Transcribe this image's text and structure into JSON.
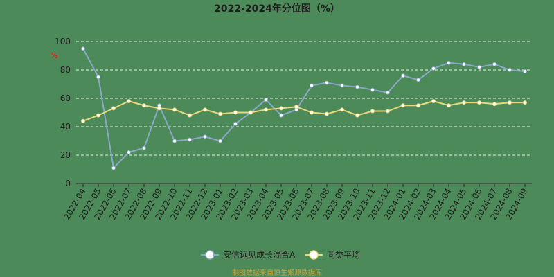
{
  "chart_data": {
    "type": "line",
    "title": "2022-2024年分位图（%）",
    "ylabel_mark": "%",
    "ylim": [
      0,
      100
    ],
    "yticks": [
      0,
      20,
      40,
      60,
      80,
      100
    ],
    "grid": true,
    "legend_position": "bottom-center",
    "categories": [
      "2022-04",
      "2022-05",
      "2022-06",
      "2022-07",
      "2022-08",
      "2022-09",
      "2022-10",
      "2022-11",
      "2022-12",
      "2023-01",
      "2023-02",
      "2023-03",
      "2023-04",
      "2023-05",
      "2023-06",
      "2023-07",
      "2023-08",
      "2023-09",
      "2023-10",
      "2023-11",
      "2023-12",
      "2024-01",
      "2024-02",
      "2024-03",
      "2024-04",
      "2024-05",
      "2024-06",
      "2024-07",
      "2024-08",
      "2024-09"
    ],
    "series": [
      {
        "name": "安信远见成长混合A",
        "color": "#8aa8c8",
        "values": [
          95,
          75,
          11,
          22,
          25,
          55,
          30,
          31,
          33,
          30,
          42,
          50,
          59,
          48,
          52,
          69,
          71,
          69,
          68,
          66,
          64,
          76,
          73,
          81,
          85,
          84,
          82,
          84,
          80,
          79
        ]
      },
      {
        "name": "同类平均",
        "color": "#e8d97a",
        "values": [
          44,
          48,
          53,
          58,
          55,
          53,
          52,
          48,
          52,
          49,
          50,
          50,
          52,
          53,
          54,
          50,
          49,
          52,
          48,
          51,
          51,
          55,
          55,
          58,
          55,
          57,
          57,
          56,
          57,
          57
        ]
      }
    ],
    "footer_text": "制图数据来自恒生聚源数据库"
  }
}
